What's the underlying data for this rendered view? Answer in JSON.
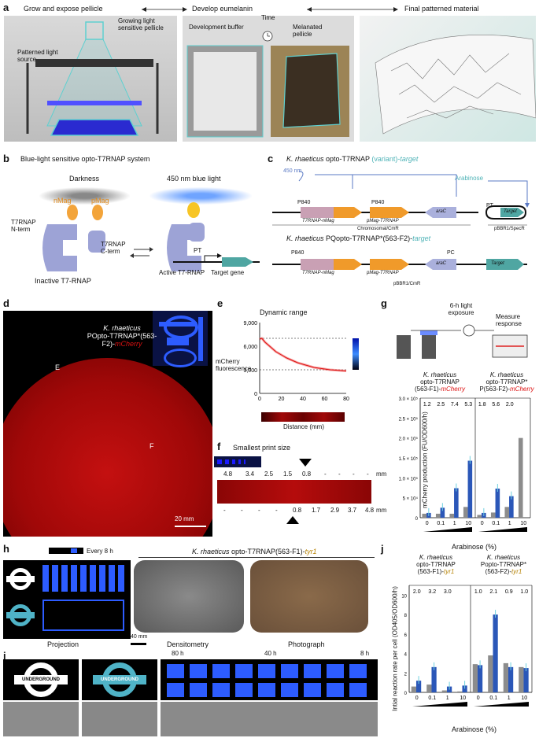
{
  "panel_a": {
    "label": "a",
    "step1": "Grow and expose pellicle",
    "step2": "Develop eumelanin",
    "step3": "Final patterned material",
    "light_source": "Patterned light source",
    "growing_pellicle": "Growing light sensitive pellicle",
    "dev_buffer": "Development buffer",
    "time": "Time",
    "melanated": "Melanated pellicle"
  },
  "panel_b": {
    "label": "b",
    "title": "Blue-light sensitive opto-T7RNAP system",
    "darkness": "Darkness",
    "blue": "450 nm blue light",
    "nmag": "nMag",
    "pmag": "pMag",
    "nterm": "T7RNAP N-term",
    "cterm": "T7RNAP C-term",
    "pt": "PT",
    "target_gene": "Target gene",
    "inactive": "Inactive T7-RNAP",
    "active": "Active T7-RNAP"
  },
  "panel_c": {
    "label": "c",
    "title1_a": "K. rhaeticus",
    "title1_b": " opto-T7RNAP ",
    "title1_c": "(variant)-",
    "title1_d": "target",
    "nm450": "450 nm",
    "arabinose": "Arabinose",
    "gene1": "T7RNAP-nMag",
    "gene2": "pMag-T7RNAP",
    "gene3": "araC",
    "target": "Target",
    "chromo": "Chromosomal/CmR",
    "pbbr_spec": "pBBR1/SpecR",
    "title2_a": "K. rhaeticus",
    "title2_b": " PQopto-T7RNAP*(563-F2)-",
    "title2_c": "target",
    "pbbr_cm": "pBBR1/CmR",
    "p840": "P840",
    "pc": "PC",
    "pt": "PT"
  },
  "panel_d": {
    "label": "d",
    "title1": "K. rhaeticus",
    "title2_a": "POpto-T7RNAP*(563-F2)-",
    "title2_b": "mCherry",
    "e": "E",
    "f": "F",
    "scale": "20 mm"
  },
  "panel_e": {
    "label": "e",
    "title": "Dynamic range",
    "ylabel": "mCherry fluorescence",
    "xlabel": "Distance (mm)"
  },
  "panel_f": {
    "label": "f",
    "title": "Smallest print size",
    "top_vals": [
      "4.8",
      "3.4",
      "2.5",
      "1.5",
      "0.8",
      "-",
      "-",
      "-",
      "-"
    ],
    "bottom_vals": [
      "-",
      "-",
      "-",
      "-",
      "0.8",
      "1.7",
      "2.9",
      "3.7",
      "4.8"
    ],
    "unit": "mm"
  },
  "panel_g": {
    "label": "g",
    "light": "6-h light exposure",
    "measure": "Measure response",
    "strain1_a": "K. rhaeticus",
    "strain1_b": "opto-T7RNAP",
    "strain1_c": "(563-F1)-",
    "strain1_d": "mCherry",
    "strain2_a": "K. rhaeticus",
    "strain2_b": "opto-T7RNAP*",
    "strain2_c": "P(563-F2)-",
    "strain2_d": "mCherry",
    "ylabel": "mCherry production (FU/OD600/h)",
    "xlabel": "Arabinose (%)",
    "ratios1": [
      "1.2",
      "2.5",
      "7.4",
      "5.3"
    ],
    "ratios2": [
      "1.8",
      "5.6",
      "2.0"
    ]
  },
  "panel_h": {
    "label": "h",
    "every": "Every 8 h",
    "title_a": "K. rhaeticus",
    "title_b": " opto-T7RNAP(563-F1)-",
    "title_c": "tyr1",
    "projection": "Projection",
    "densitometry": "Densitometry",
    "photograph": "Photograph",
    "scale": "40 mm",
    "underground": "UNDERGROUND"
  },
  "panel_i": {
    "label": "i",
    "t80": "80 h",
    "t40": "40 h",
    "t8": "8 h",
    "underground": "UNDERGROUND"
  },
  "panel_j": {
    "label": "j",
    "strain1_a": "K. rhaeticus",
    "strain1_b": "opto-T7RNAP",
    "strain1_c": "(563-F1)-",
    "strain1_d": "tyr1",
    "strain2_a": "K. rhaeticus",
    "strain2_b": "Popto-T7RNAP*",
    "strain2_c": "(563-F2)-",
    "strain2_d": "tyr1",
    "ylabel": "Intial reaction rate per cell (OD405/OD600/h)",
    "xlabel": "Arabinose (%)",
    "ratios1": [
      "2.0",
      "3.2",
      "3.0"
    ],
    "ratios2": [
      "1.0",
      "2.1",
      "0.9",
      "1.0"
    ]
  },
  "chart_data": [
    {
      "type": "line",
      "panel": "e",
      "title": "Dynamic range",
      "xlabel": "Distance (mm)",
      "ylabel": "mCherry fluorescence",
      "x": [
        0,
        2,
        5,
        10,
        15,
        20,
        25,
        30,
        35,
        40,
        45,
        50,
        55,
        60,
        65,
        70,
        75,
        80
      ],
      "y": [
        6900,
        7000,
        6500,
        5900,
        5300,
        4900,
        4500,
        4200,
        3900,
        3700,
        3500,
        3300,
        3200,
        3100,
        3000,
        2950,
        2900,
        2850
      ],
      "xlim": [
        0,
        80
      ],
      "ylim": [
        0,
        9000
      ],
      "xticks": [
        0,
        20,
        40,
        60,
        80
      ],
      "yticks": [
        "0",
        "3,000",
        "6,000",
        "9,000"
      ],
      "ref_lines": [
        7000,
        3000
      ]
    },
    {
      "type": "bar",
      "panel": "g",
      "ylabel": "mCherry production (FU/OD600/h)",
      "xlabel": "Arabinose (%)",
      "yticks": [
        "0",
        "5 × 10⁴",
        "1.0 × 10⁵",
        "1.5 × 10⁵",
        "2.0 × 10⁵",
        "2.5 × 10⁵",
        "3.0 × 10⁵"
      ],
      "ylim": [
        0,
        300000
      ],
      "groups": [
        {
          "categories": [
            "0",
            "0.1",
            "1",
            "10"
          ],
          "dark": [
            10000,
            10000,
            10000,
            27000
          ],
          "light": [
            12000,
            25000,
            74000,
            143000
          ]
        },
        {
          "categories": [
            "0",
            "0.1",
            "1",
            "10"
          ],
          "dark": [
            7000,
            13000,
            27000,
            200000
          ],
          "light": [
            12000,
            73000,
            54000,
            0
          ]
        }
      ],
      "colors": {
        "dark": "#8c8c8c",
        "light": "#2b57b8",
        "points": "#6fd0e0"
      }
    },
    {
      "type": "bar",
      "panel": "j",
      "ylabel": "Intial reaction rate per cell (OD405/OD600/h)",
      "xlabel": "Arabinose (%)",
      "yticks": [
        "0",
        "2",
        "4",
        "6",
        "8",
        "10"
      ],
      "ylim": [
        0,
        11
      ],
      "groups": [
        {
          "categories": [
            "0",
            "0.1",
            "1",
            "10"
          ],
          "dark": [
            0.6,
            0.8,
            0.2,
            0.1
          ],
          "light": [
            1.2,
            2.6,
            0.6,
            0.7
          ]
        },
        {
          "categories": [
            "0",
            "0.1",
            "1",
            "10"
          ],
          "dark": [
            2.9,
            3.8,
            3.0,
            2.6
          ],
          "light": [
            2.8,
            8.0,
            2.6,
            2.5
          ]
        }
      ],
      "colors": {
        "dark": "#8c8c8c",
        "light": "#2b57b8",
        "points": "#6fd0e0"
      }
    }
  ]
}
